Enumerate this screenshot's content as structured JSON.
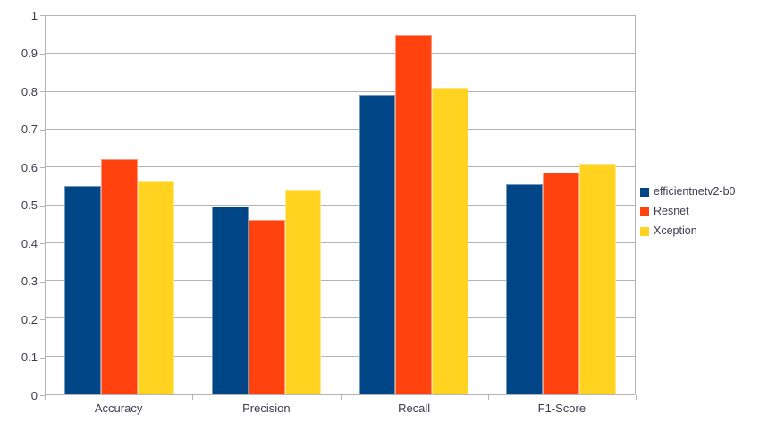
{
  "chart_data": {
    "type": "bar",
    "title": "",
    "xlabel": "",
    "ylabel": "",
    "categories": [
      "Accuracy",
      "Precision",
      "Recall",
      "F1-Score"
    ],
    "series": [
      {
        "name": "efficientnetv2-b0",
        "color": "#004586",
        "values": [
          0.552,
          0.497,
          0.791,
          0.556
        ]
      },
      {
        "name": "Resnet",
        "color": "#ff420e",
        "values": [
          0.621,
          0.462,
          0.95,
          0.587
        ]
      },
      {
        "name": "Xception",
        "color": "#ffd320",
        "values": [
          0.566,
          0.54,
          0.81,
          0.609
        ]
      }
    ],
    "ylim": [
      0,
      1
    ],
    "yticks": [
      0,
      0.1,
      0.2,
      0.3,
      0.4,
      0.5,
      0.6,
      0.7,
      0.8,
      0.9,
      1
    ],
    "ytick_labels": [
      "0",
      "0.1",
      "0.2",
      "0.3",
      "0.4",
      "0.5",
      "0.6",
      "0.7",
      "0.8",
      "0.9",
      "1"
    ],
    "grid": true,
    "legend_position": "right"
  },
  "colors": {
    "series": [
      "#004586",
      "#ff420e",
      "#ffd320"
    ],
    "grid": "#b3b3b3",
    "axis_text": "#3b3b4d",
    "background": "#ffffff"
  }
}
